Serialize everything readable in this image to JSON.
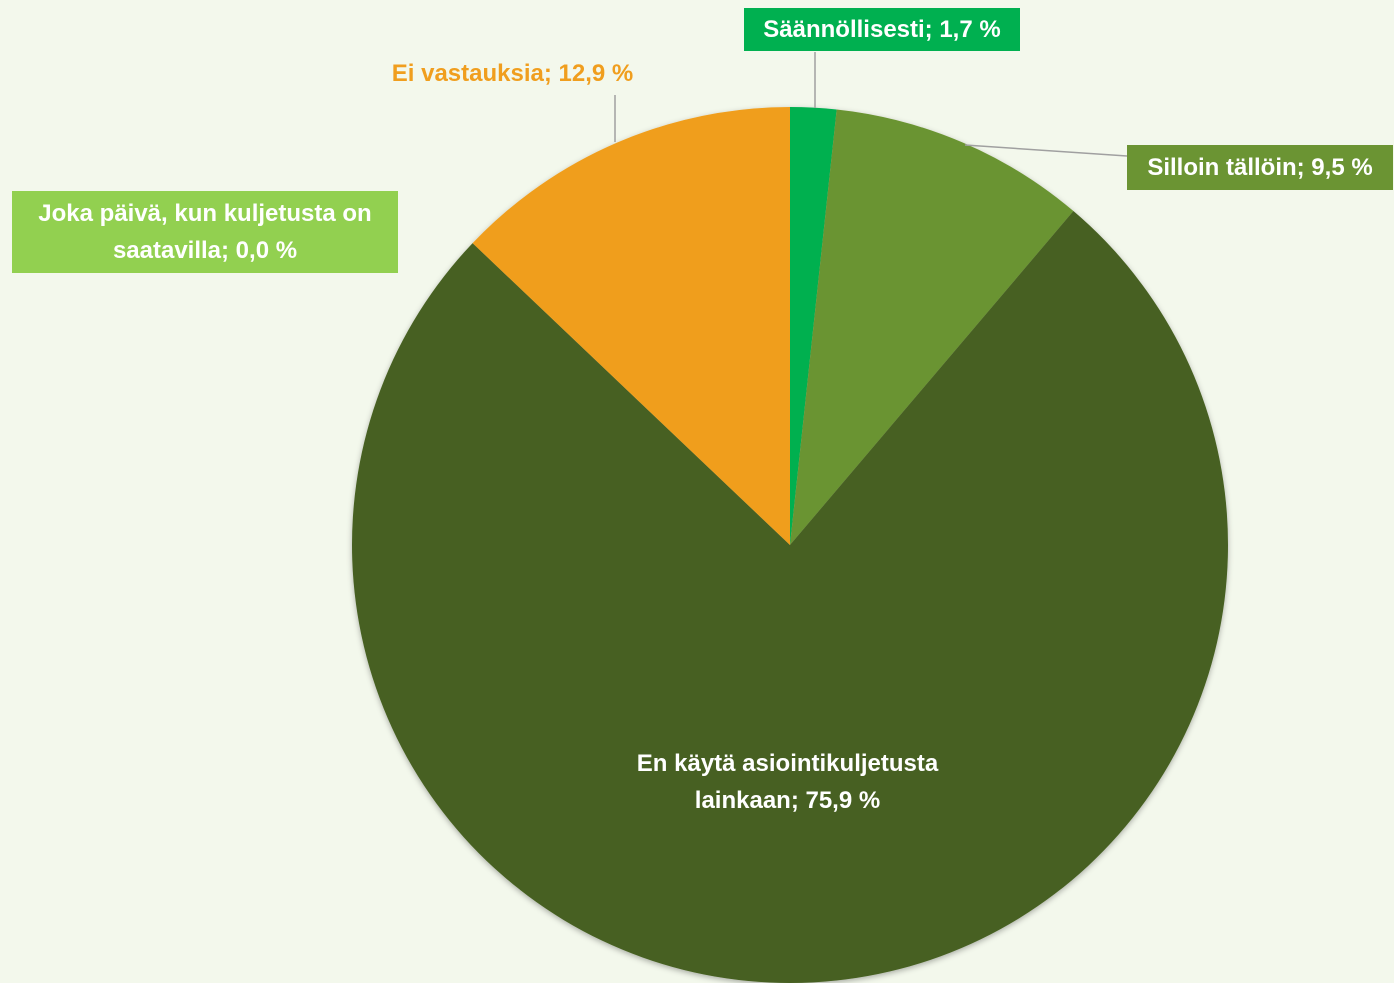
{
  "chart_data": {
    "type": "pie",
    "values": [
      0.0,
      1.7,
      9.5,
      75.9,
      12.9
    ],
    "value_labels": [
      "Joka päivä, kun kuljetusta on saatavilla; 0,0 %",
      "Säännöllisesti; 1,7 %",
      "Silloin tällöin; 9,5 %",
      "En käytä asiointikuljetusta lainkaan; 75,9 %",
      "Ei vastauksia; 12,9 %"
    ],
    "colors": [
      "#92d050",
      "#00b050",
      "#6b9433",
      "#466021",
      "#f09e1e"
    ]
  }
}
